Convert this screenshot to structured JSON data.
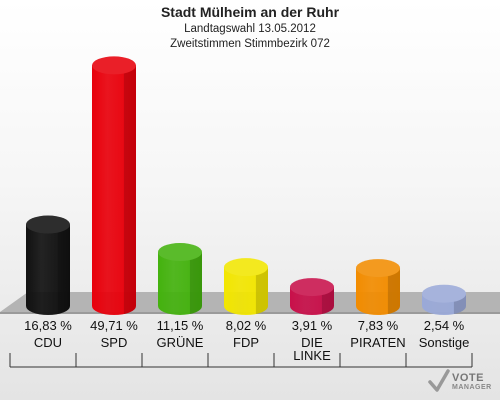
{
  "chart_data": {
    "type": "bar",
    "title": "Stadt Mülheim an der Ruhr",
    "subtitle_line1": "Landtagswahl 13.05.2012",
    "subtitle_line2": "Zweitstimmen Stimmbezirk 072",
    "categories": [
      "CDU",
      "SPD",
      "GRÜNE",
      "FDP",
      "DIE LINKE",
      "PIRATEN",
      "Sonstige"
    ],
    "values": [
      16.83,
      49.71,
      11.15,
      8.02,
      3.91,
      7.83,
      2.54
    ],
    "value_labels": [
      "16,83 %",
      "49,71 %",
      "11,15 %",
      "8,02 %",
      "3,91 %",
      "7,83 %",
      "2,54 %"
    ],
    "colors": [
      "#111111",
      "#e8000b",
      "#44b20e",
      "#f2e600",
      "#c8104a",
      "#f28c00",
      "#9aa9d8"
    ],
    "ylim": [
      0,
      50
    ],
    "grid": false,
    "legend": "none"
  },
  "logo": {
    "line1": "VOTE",
    "line2": "MANAGER"
  }
}
